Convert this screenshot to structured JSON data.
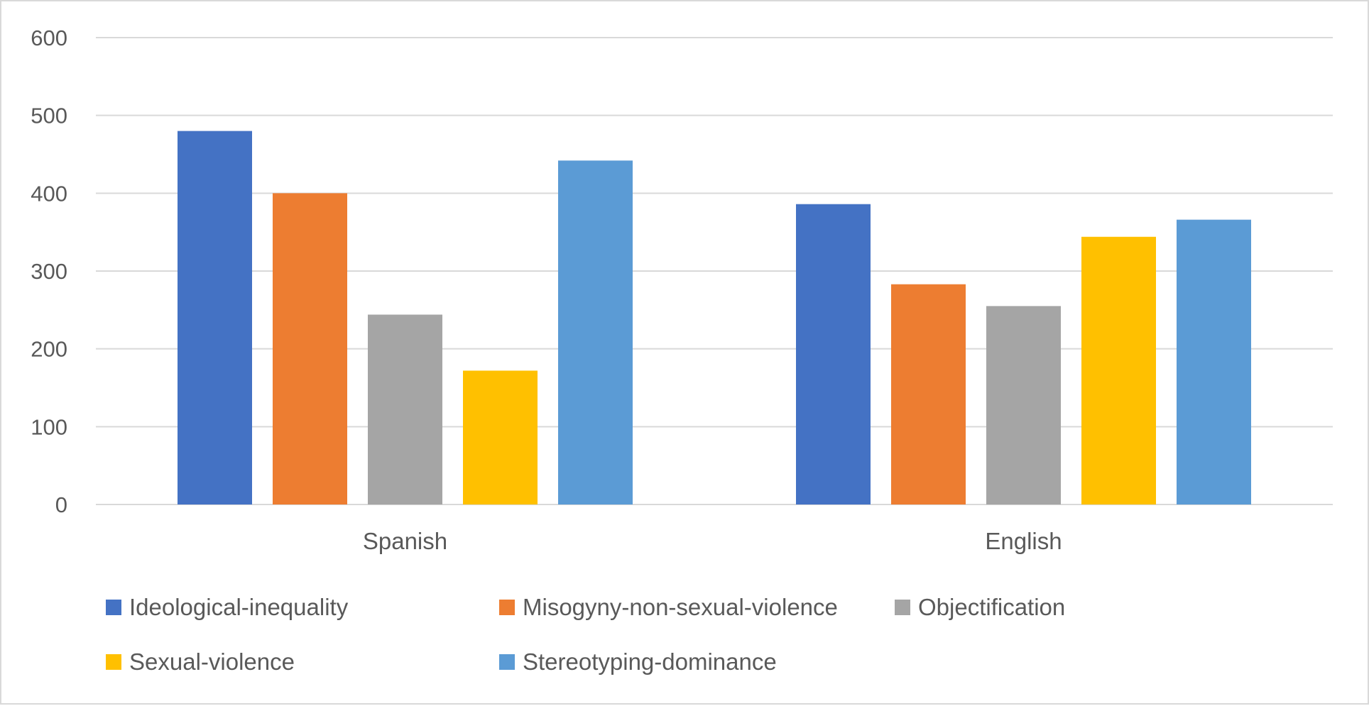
{
  "chart_data": {
    "type": "bar",
    "title": "",
    "xlabel": "",
    "ylabel": "",
    "categories": [
      "Spanish",
      "English"
    ],
    "series": [
      {
        "name": "Ideological-inequality",
        "color": "#4472C4",
        "values": [
          480,
          386
        ]
      },
      {
        "name": "Misogyny-non-sexual-violence",
        "color": "#ED7D31",
        "values": [
          400,
          283
        ]
      },
      {
        "name": "Objectification",
        "color": "#A5A5A5",
        "values": [
          244,
          255
        ]
      },
      {
        "name": "Sexual-violence",
        "color": "#FFC000",
        "values": [
          172,
          344
        ]
      },
      {
        "name": "Stereotyping-dominance",
        "color": "#5B9BD5",
        "values": [
          442,
          366
        ]
      }
    ],
    "ylim": [
      0,
      600
    ],
    "yticks": [
      0,
      100,
      200,
      300,
      400,
      500,
      600
    ],
    "grid": true,
    "legend_position": "bottom",
    "gridline_color": "#d9d9d9",
    "text_color": "#595959"
  }
}
